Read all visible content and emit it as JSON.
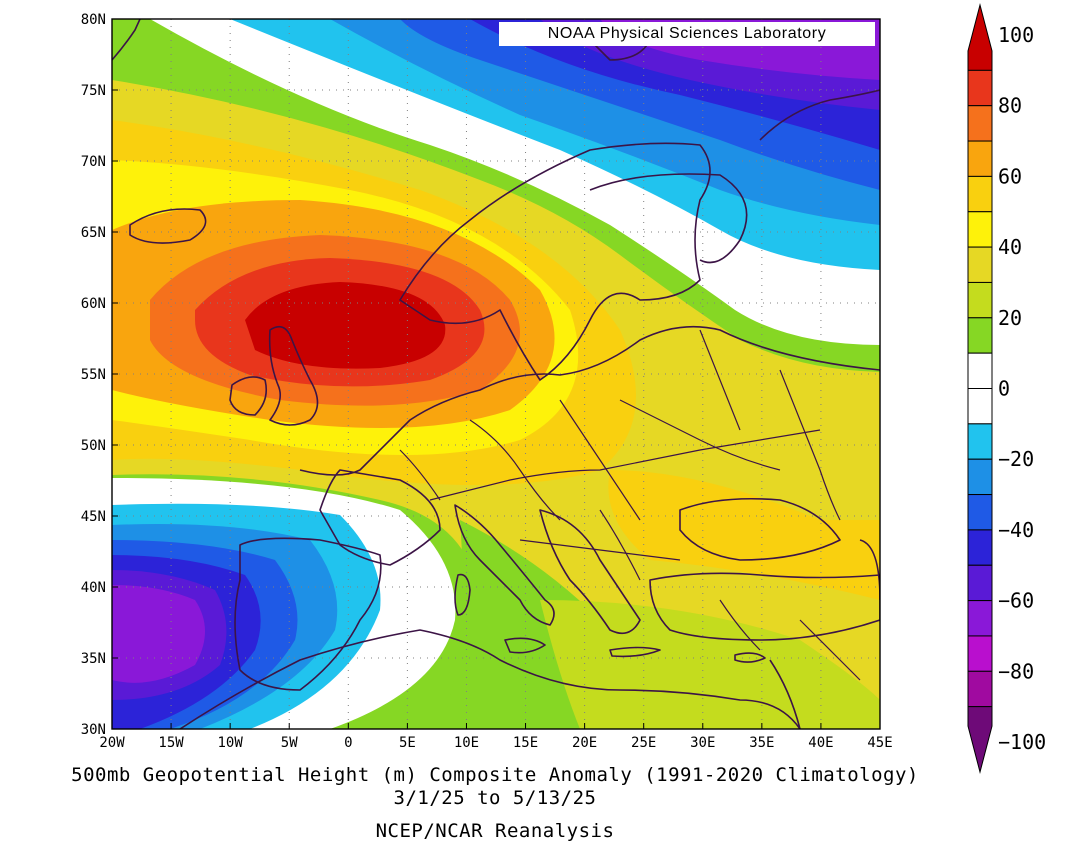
{
  "credit": "NOAA Physical Sciences Laboratory",
  "caption": {
    "title": "500mb Geopotential Height (m) Composite Anomaly (1991-2020 Climatology)",
    "dates": "3/1/25   to 5/13/25",
    "source": "NCEP/NCAR Reanalysis"
  },
  "map": {
    "lon_range": [
      -20,
      45
    ],
    "lat_range": [
      30,
      80
    ],
    "lon_ticks": [
      "20W",
      "15W",
      "10W",
      "5W",
      "0",
      "5E",
      "10E",
      "15E",
      "20E",
      "25E",
      "30E",
      "35E",
      "40E",
      "45E"
    ],
    "lat_ticks": [
      "30N",
      "35N",
      "40N",
      "45N",
      "50N",
      "55N",
      "60N",
      "65N",
      "70N",
      "75N",
      "80N"
    ],
    "grid": "dotted",
    "anomaly_centers": [
      {
        "lon": -3,
        "lat": 58,
        "value": 100,
        "note": "positive maximum over North Sea / Scotland"
      },
      {
        "lon": -17,
        "lat": 38,
        "value": -70,
        "note": "negative minimum west of Iberia"
      },
      {
        "lon": 32,
        "lat": 79,
        "value": -70,
        "note": "negative minimum over Barents Sea"
      }
    ]
  },
  "colorbar": {
    "labels": [
      "100",
      "80",
      "60",
      "40",
      "20",
      "0",
      "−20",
      "−40",
      "−60",
      "−80",
      "−100"
    ],
    "levels_top_to_bottom": [
      {
        "max": 100,
        "min": 90,
        "color": "#c80000"
      },
      {
        "max": 90,
        "min": 80,
        "color": "#e8361c"
      },
      {
        "max": 80,
        "min": 70,
        "color": "#f5711c"
      },
      {
        "max": 70,
        "min": 60,
        "color": "#f9a50e"
      },
      {
        "max": 60,
        "min": 50,
        "color": "#f9d00f"
      },
      {
        "max": 50,
        "min": 40,
        "color": "#fef20a"
      },
      {
        "max": 40,
        "min": 30,
        "color": "#e6d824"
      },
      {
        "max": 30,
        "min": 20,
        "color": "#c4dc1e"
      },
      {
        "max": 20,
        "min": 10,
        "color": "#86d724"
      },
      {
        "max": 10,
        "min": 0,
        "color": "#ffffff"
      },
      {
        "max": 0,
        "min": -10,
        "color": "#ffffff"
      },
      {
        "max": -10,
        "min": -20,
        "color": "#21c3ee"
      },
      {
        "max": -20,
        "min": -30,
        "color": "#1e90e6"
      },
      {
        "max": -30,
        "min": -40,
        "color": "#1f5ae6"
      },
      {
        "max": -40,
        "min": -50,
        "color": "#2c23d8"
      },
      {
        "max": -50,
        "min": -60,
        "color": "#5a1ad6"
      },
      {
        "max": -60,
        "min": -70,
        "color": "#8a18d8"
      },
      {
        "max": -70,
        "min": -80,
        "color": "#b90fce"
      },
      {
        "max": -80,
        "min": -90,
        "color": "#a00aa0"
      },
      {
        "max": -90,
        "min": -100,
        "color": "#6e0a78"
      }
    ]
  }
}
